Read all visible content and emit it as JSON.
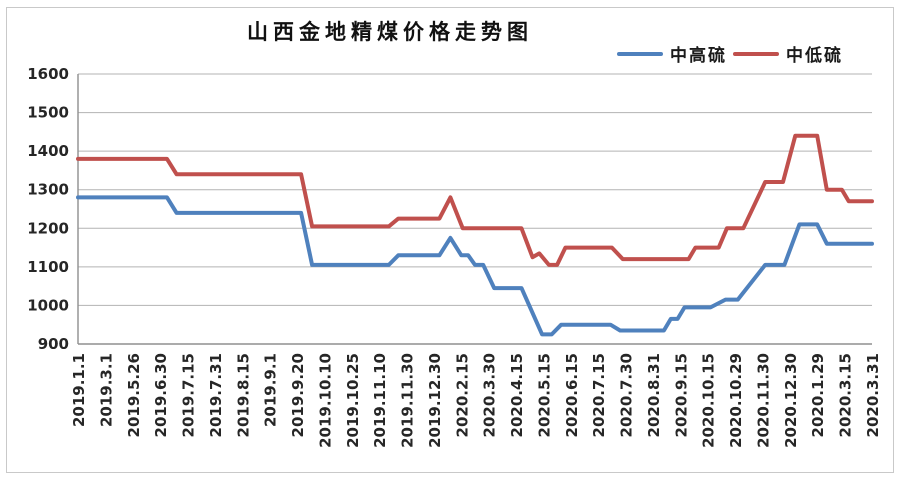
{
  "chart_data": {
    "type": "line",
    "title": "山西金地精煤价格走势图",
    "grid": true,
    "legend_position": "top-right",
    "y_axis": {
      "min": 900,
      "max": 1600,
      "step": 100
    },
    "x_labels": [
      "2019.1.1",
      "2019.3.1",
      "2019.5.26",
      "2019.6.30",
      "2019.7.15",
      "2019.7.31",
      "2019.8.15",
      "2019.9.1",
      "2019.9.20",
      "2019.10.10",
      "2019.10.25",
      "2019.11.10",
      "2019.11.30",
      "2019.12.30",
      "2020.2.15",
      "2020.3.30",
      "2020.4.15",
      "2020.5.15",
      "2020.6.15",
      "2020.7.15",
      "2020.7.30",
      "2020.8.31",
      "2020.9.15",
      "2020.10.15",
      "2020.10.29",
      "2020.11.30",
      "2020.12.30",
      "2020.1.29",
      "2020.3.15",
      "2020.3.31"
    ],
    "x_encoding": "label_index",
    "series": [
      {
        "name": "中高硫",
        "color": "#4F81BD",
        "points": [
          [
            0,
            1280
          ],
          [
            3.25,
            1280
          ],
          [
            3.6,
            1240
          ],
          [
            8.15,
            1240
          ],
          [
            8.55,
            1105
          ],
          [
            11.35,
            1105
          ],
          [
            11.7,
            1130
          ],
          [
            13.2,
            1130
          ],
          [
            13.6,
            1175
          ],
          [
            14.0,
            1130
          ],
          [
            14.25,
            1130
          ],
          [
            14.5,
            1105
          ],
          [
            14.8,
            1105
          ],
          [
            15.2,
            1045
          ],
          [
            16.2,
            1045
          ],
          [
            16.95,
            925
          ],
          [
            17.3,
            925
          ],
          [
            17.65,
            950
          ],
          [
            19.45,
            950
          ],
          [
            19.8,
            935
          ],
          [
            21.4,
            935
          ],
          [
            21.65,
            965
          ],
          [
            21.9,
            965
          ],
          [
            22.15,
            995
          ],
          [
            23.1,
            995
          ],
          [
            23.65,
            1015
          ],
          [
            24.1,
            1015
          ],
          [
            25.1,
            1105
          ],
          [
            25.8,
            1105
          ],
          [
            26.35,
            1210
          ],
          [
            27.0,
            1210
          ],
          [
            27.35,
            1160
          ],
          [
            29,
            1160
          ]
        ]
      },
      {
        "name": "中低硫",
        "color": "#C0504D",
        "points": [
          [
            0,
            1380
          ],
          [
            3.25,
            1380
          ],
          [
            3.6,
            1340
          ],
          [
            8.15,
            1340
          ],
          [
            8.55,
            1205
          ],
          [
            11.35,
            1205
          ],
          [
            11.7,
            1225
          ],
          [
            13.2,
            1225
          ],
          [
            13.6,
            1280
          ],
          [
            14.05,
            1200
          ],
          [
            16.2,
            1200
          ],
          [
            16.6,
            1125
          ],
          [
            16.85,
            1135
          ],
          [
            17.2,
            1105
          ],
          [
            17.5,
            1105
          ],
          [
            17.8,
            1150
          ],
          [
            19.5,
            1150
          ],
          [
            19.9,
            1120
          ],
          [
            22.3,
            1120
          ],
          [
            22.55,
            1150
          ],
          [
            23.4,
            1150
          ],
          [
            23.7,
            1200
          ],
          [
            24.3,
            1200
          ],
          [
            25.1,
            1320
          ],
          [
            25.75,
            1320
          ],
          [
            26.2,
            1440
          ],
          [
            27.0,
            1440
          ],
          [
            27.35,
            1300
          ],
          [
            27.9,
            1300
          ],
          [
            28.15,
            1270
          ],
          [
            29,
            1270
          ]
        ]
      }
    ],
    "colors": {
      "gridline": "#b3b3b3",
      "axis": "#8f8f8f",
      "tick_label": "#262626"
    }
  }
}
